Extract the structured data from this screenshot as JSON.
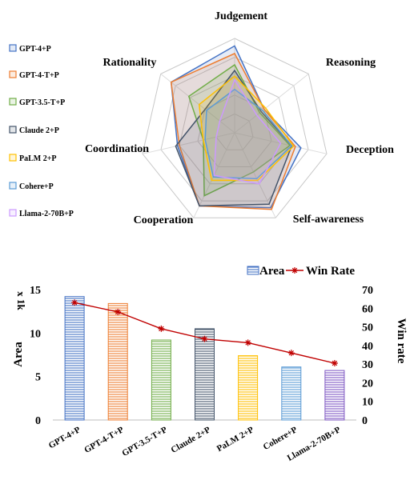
{
  "chart_data": [
    {
      "type": "radar",
      "axes": [
        "Judgement",
        "Reasoning",
        "Deception",
        "Self-awareness",
        "Cooperation",
        "Coordination",
        "Rationality"
      ],
      "rmax": 5,
      "series": [
        {
          "name": "GPT-4+P",
          "color": "#4472C4",
          "values": [
            4.6,
            2.0,
            3.6,
            4.4,
            4.3,
            3.1,
            4.3
          ]
        },
        {
          "name": "GPT-4-T+P",
          "color": "#ED7D31",
          "values": [
            4.2,
            2.0,
            3.3,
            4.5,
            4.3,
            3.0,
            4.3
          ]
        },
        {
          "name": "GPT-3.5-T+P",
          "color": "#70AD47",
          "values": [
            3.6,
            1.7,
            3.0,
            2.3,
            3.7,
            1.7,
            3.1
          ]
        },
        {
          "name": "Claude 2+P",
          "color": "#44546A",
          "values": [
            3.3,
            1.8,
            3.1,
            4.2,
            4.3,
            3.2,
            2.0
          ]
        },
        {
          "name": "PaLM 2+P",
          "color": "#FFC000",
          "values": [
            3.0,
            2.1,
            3.2,
            2.8,
            2.8,
            1.7,
            2.4
          ]
        },
        {
          "name": "Cohere+P",
          "color": "#5B9BD5",
          "values": [
            2.3,
            1.9,
            3.1,
            2.7,
            2.6,
            1.6,
            1.9
          ]
        },
        {
          "name": "Llama-2-70B+P",
          "color": "#CC99FF",
          "values": [
            2.8,
            1.5,
            2.5,
            3.0,
            2.5,
            1.0,
            1.0
          ]
        }
      ]
    },
    {
      "type": "bar+line",
      "categories": [
        "GPT-4+P",
        "GPT-4-T+P",
        "GPT-3.5-T+P",
        "Claude 2+P",
        "PaLM 2+P",
        "Cohere+P",
        "Llama-2-70B+P"
      ],
      "series": [
        {
          "name": "Area",
          "axis": "left",
          "values": [
            14.2,
            13.4,
            9.2,
            10.5,
            7.4,
            6.1,
            5.7
          ]
        },
        {
          "name": "Win Rate",
          "axis": "right",
          "values": [
            63,
            58,
            49,
            43.5,
            41.5,
            36,
            30.5
          ]
        }
      ],
      "bar_colors": [
        "#4472C4",
        "#ED7D31",
        "#70AD47",
        "#44546A",
        "#FFC000",
        "#5B9BD5",
        "#7E57C2"
      ],
      "line_color": "#C00000",
      "ylabel": "Area",
      "ylabel_multiplier": "x 1k",
      "y2label": "Win rate",
      "ylim": [
        0,
        15
      ],
      "y2lim": [
        0,
        70
      ],
      "yticks": [
        "0",
        "5",
        "10",
        "15"
      ],
      "y2ticks": [
        "0",
        "10",
        "20",
        "30",
        "40",
        "50",
        "60",
        "70"
      ],
      "legend_position": "top-right"
    }
  ]
}
